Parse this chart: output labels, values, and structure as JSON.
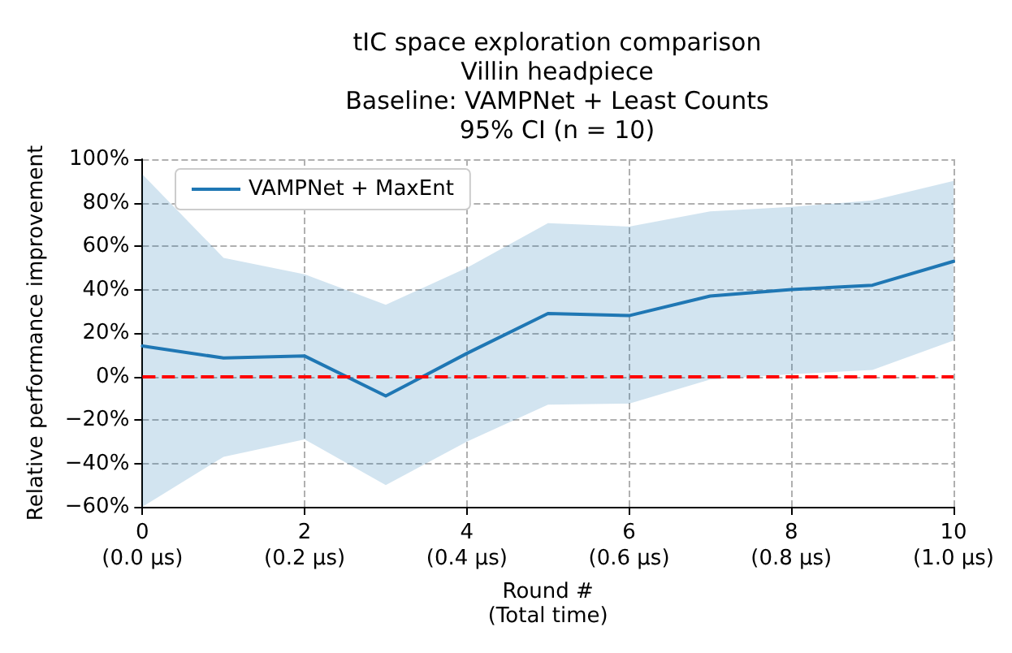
{
  "chart_data": {
    "type": "line",
    "title": "tIC space exploration comparison\nVillin headpiece\nBaseline: VAMPNet + Least Counts\n95% CI (n = 10)",
    "xlabel": "Round #\n(Total time)",
    "ylabel": "Relative performance improvement",
    "categories": [
      "0\n(0.0 μs)",
      null,
      "2\n(0.2 μs)",
      null,
      "4\n(0.4 μs)",
      null,
      "6\n(0.6 μs)",
      null,
      "8\n(0.8 μs)",
      null,
      "10\n(1.0 μs)"
    ],
    "series": [
      {
        "name": "VAMPNet + MaxEnt",
        "color": "#1f77b4",
        "values": [
          14,
          8.5,
          9.4,
          -9,
          10.6,
          29,
          28,
          37,
          40,
          42,
          53
        ],
        "lower": [
          -60,
          -37,
          -29,
          -50,
          -30,
          -13,
          -12.5,
          -1.4,
          1,
          3,
          16.5
        ],
        "upper": [
          93,
          54.6,
          47,
          33,
          50,
          70.6,
          69,
          76,
          78,
          81,
          90
        ]
      }
    ],
    "ylim": [
      -60,
      100
    ],
    "yticks": [
      {
        "value": -60,
        "label": "−60%"
      },
      {
        "value": -40,
        "label": "−40%"
      },
      {
        "value": -20,
        "label": "−20%"
      },
      {
        "value": 0,
        "label": "0%"
      },
      {
        "value": 20,
        "label": "20%"
      },
      {
        "value": 40,
        "label": "40%"
      },
      {
        "value": 60,
        "label": "60%"
      },
      {
        "value": 80,
        "label": "80%"
      },
      {
        "value": 100,
        "label": "100%"
      }
    ],
    "ref_lines": [
      {
        "axis": "y",
        "value": 0,
        "color": "#ff0000",
        "line_style": "dashed"
      }
    ],
    "grid": true,
    "legend": "top left",
    "marker": "none",
    "line_style": "solid"
  }
}
